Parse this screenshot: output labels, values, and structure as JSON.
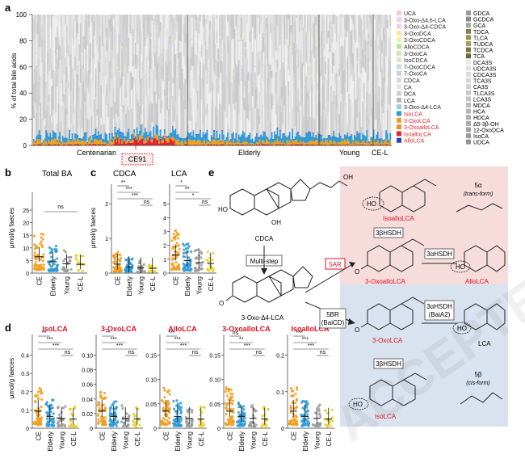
{
  "panels": {
    "a": "a",
    "b": "b",
    "c": "c",
    "d": "d",
    "e": "e"
  },
  "panel_a": {
    "ylabel": "% of total bile acids",
    "yticks": [
      "0",
      "20",
      "40",
      "60",
      "80",
      "100"
    ],
    "groups": [
      "Centenarian",
      "Elderly",
      "Young",
      "CE-L"
    ],
    "highlight_label": "CE91",
    "legend_left": [
      {
        "label": "UCA",
        "color": "#f7c7e6"
      },
      {
        "label": "3-Oxo-Δ4,6-LCA",
        "color": "#f1d0ea"
      },
      {
        "label": "3-Oxo-Δ4-CDCA",
        "color": "#e6d3f2"
      },
      {
        "label": "3-OxoDCA",
        "color": "#f3ec9c"
      },
      {
        "label": "3-OxoCDCA",
        "color": "#edf0a6"
      },
      {
        "label": "AlloCDCA",
        "color": "#b9e39a"
      },
      {
        "label": "3-OxoCA",
        "color": "#cfe8b6"
      },
      {
        "label": "IsoCDCA",
        "color": "#d6e9c7"
      },
      {
        "label": "7-OxoCDCA",
        "color": "#c9dbe6"
      },
      {
        "label": "7-OxoCA",
        "color": "#c8d0e2"
      },
      {
        "label": "CDCA",
        "color": "#d9d9d9"
      },
      {
        "label": "CA",
        "color": "#e6e6e6"
      },
      {
        "label": "DCA",
        "color": "#cfcfcf"
      },
      {
        "label": "LCA",
        "color": "#b8b8b8"
      },
      {
        "label": "3-Oxo-Δ4-LCA",
        "color": "#9cc9e0"
      },
      {
        "label": "IsoLCA",
        "color": "#2f9bd6"
      },
      {
        "label": "3-OxoLCA",
        "color": "#f0a020"
      },
      {
        "label": "3-OxoalloLCA",
        "color": "#f28c3b"
      },
      {
        "label": "IsoalloLCA",
        "color": "#e2262b"
      },
      {
        "label": "AlloLCA",
        "color": "#2b3fb8"
      }
    ],
    "legend_left_text_colors": {
      "IsoLCA": "#e2262b",
      "3-OxoLCA": "#e2262b",
      "3-OxoalloLCA": "#e2262b",
      "IsoalloLCA": "#e2262b",
      "AlloLCA": "#e2262b"
    },
    "legend_right": [
      {
        "label": "GDCA",
        "color": "#9a9a9a"
      },
      {
        "label": "GCDCA",
        "color": "#8c8c8c"
      },
      {
        "label": "GCA",
        "color": "#a8a8a8"
      },
      {
        "label": "TDCA",
        "color": "#8a7f4a"
      },
      {
        "label": "TLCA",
        "color": "#9b8f55"
      },
      {
        "label": "TUDCA",
        "color": "#a59a60"
      },
      {
        "label": "TCDCA",
        "color": "#7e7440"
      },
      {
        "label": "TCA",
        "color": "#6e6535"
      },
      {
        "label": "DCA3S",
        "color": "#e9e9e9"
      },
      {
        "label": "UDCA3S",
        "color": "#e3e3e3"
      },
      {
        "label": "CDCA3S",
        "color": "#dcdcdc"
      },
      {
        "label": "TCA3S",
        "color": "#d6d6d6"
      },
      {
        "label": "CA3S",
        "color": "#d0d0d0"
      },
      {
        "label": "TLCA3S",
        "color": "#cacaca"
      },
      {
        "label": "LCA3S",
        "color": "#c4c4c4"
      },
      {
        "label": "MDCA",
        "color": "#bdbdbd"
      },
      {
        "label": "HCA",
        "color": "#b6b6b6"
      },
      {
        "label": "HDCA",
        "color": "#afafaf"
      },
      {
        "label": "Δ5-3β-OH",
        "color": "#a9a9a9"
      },
      {
        "label": "12-OxoDCA",
        "color": "#a2a2a2"
      },
      {
        "label": "IsoCA",
        "color": "#9b9b9b"
      },
      {
        "label": "UDCA",
        "color": "#949494"
      }
    ]
  },
  "panel_b": {
    "title": "Total BA",
    "ylabel": "μmol/g faeces",
    "yticks": [
      "0",
      "5",
      "10",
      "15",
      "20",
      "25"
    ],
    "groups": [
      "CE",
      "Elderly",
      "Young",
      "CE-L"
    ],
    "sig": [
      "ns"
    ]
  },
  "panel_c": {
    "ylabel": "μmol/g faeces",
    "cdca": {
      "title": "CDCA",
      "yticks": [
        "0",
        "1",
        "2"
      ],
      "sig": [
        "**",
        "***",
        "***",
        "ns"
      ]
    },
    "lca": {
      "title": "LCA",
      "yticks": [
        "0",
        "1",
        "2",
        "3",
        "4",
        "5"
      ],
      "sig": [
        "*",
        "**",
        "*",
        "ns"
      ]
    },
    "groups": [
      "CE",
      "Elderly",
      "Young",
      "CE-L"
    ]
  },
  "panel_d": {
    "ylabel": "μmol/g faeces",
    "groups": [
      "CE",
      "Elderly",
      "Young",
      "CE-L"
    ],
    "subpanels": [
      {
        "title": "IsoLCA",
        "yticks": [
          "0",
          "0.1",
          "0.2",
          "0.3",
          "0.4"
        ],
        "sig": [
          "**",
          "***",
          "***",
          "ns"
        ]
      },
      {
        "title": "3-OxoLCA",
        "yticks": [
          "0",
          "0.02",
          "0.04",
          "0.06",
          "0.08",
          "0.10"
        ],
        "sig": [
          "**",
          "***",
          "***",
          "ns"
        ]
      },
      {
        "title": "AlloLCA",
        "yticks": [
          "0",
          "0.05",
          "0.10",
          "0.15"
        ],
        "sig": [
          "***",
          "***",
          "***",
          "ns"
        ]
      },
      {
        "title": "3-OxoalloLCA",
        "yticks": [
          "0",
          "0.05",
          "0.10",
          "0.15"
        ],
        "sig": [
          "ns",
          "**",
          "***",
          "ns"
        ]
      },
      {
        "title": "IsoalloLCA",
        "yticks": [
          "0",
          "0.1",
          "0.2"
        ],
        "sig": [
          "***",
          "***",
          "***",
          "ns"
        ]
      }
    ]
  },
  "panel_e": {
    "cdca_label": "CDCA",
    "multistep": "Multi-step",
    "oxo_d4_lca": "3-Oxo-Δ4-LCA",
    "isoallolca": "IsoalloLCA",
    "oxoallolca": "3-OxoalloLCA",
    "allolca": "AlloLCA",
    "lca": "LCA",
    "oxolca": "3-OxoLCA",
    "isolca": "IsoLCA",
    "enz_3bhsdh_top": "3βHSDH",
    "enz_3bhsdh_bottom": "3βHSDH",
    "enz_3ahsdh_top": "3αHSDH",
    "enz_3ahsdh_bottom": "3αHSDH",
    "enz_baia2": "(BaiA2)",
    "enz_5ar": "5AR",
    "enz_5br": "5BR",
    "enz_baicd": "(BaiCD)",
    "alpha_label": "5α",
    "alpha_sub": "(trans-form)",
    "beta_label": "5β",
    "beta_sub": "(cis-form)",
    "pink_box_color": "#f7dcdc",
    "blue_box_color": "#d9e3ef"
  },
  "watermark": "ACCEPTED ARTICLE PREVIEW"
}
